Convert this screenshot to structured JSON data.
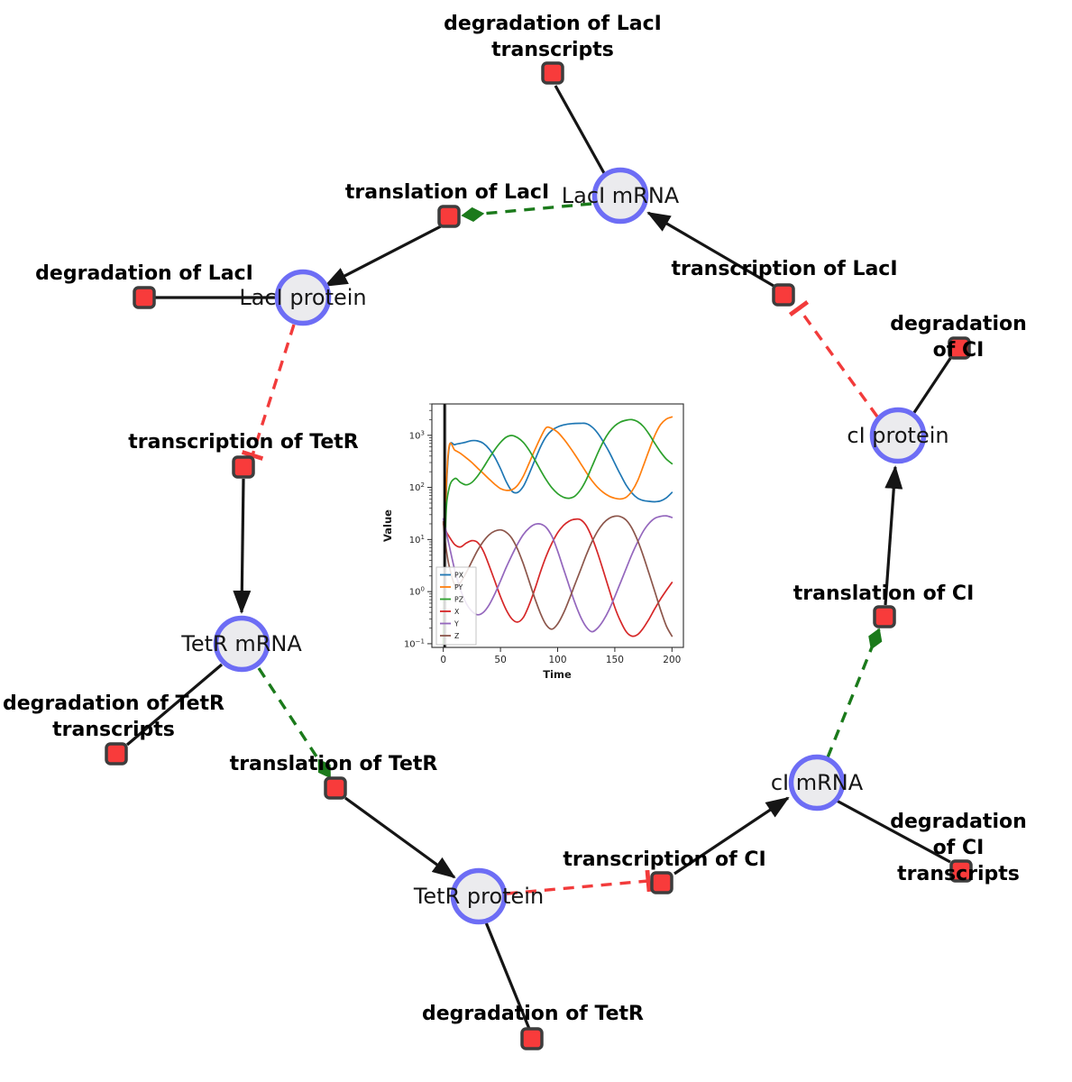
{
  "diagram": {
    "species_labels": {
      "lacI_mRNA": "LacI mRNA",
      "lacI_protein": "LacI protein",
      "tetR_mRNA": "TetR mRNA",
      "tetR_protein": "TetR protein",
      "cI_mRNA": "cI mRNA",
      "cI_protein": "cI protein"
    },
    "reaction_labels": {
      "deg_lacI_transcripts": "degradation of LacI\ntranscripts",
      "translation_lacI": "translation of LacI",
      "deg_lacI": "degradation of LacI",
      "transcription_lacI": "transcription of LacI",
      "deg_cI": "degradation of CI",
      "transcription_tetR": "transcription of TetR",
      "deg_tetR_transcripts": "degradation of TetR\ntranscripts",
      "translation_tetR": "translation of TetR",
      "deg_tetR": "degradation of TetR",
      "transcription_cI": "transcription of CI",
      "deg_cI_transcripts": "degradation of CI\ntranscripts",
      "translation_cI": "translation of CI"
    },
    "colors": {
      "species_fill": "#ebebee",
      "species_border": "#6d6df5",
      "reaction_fill": "#f83b3b",
      "reaction_border": "#3d3d3d",
      "activation": "#1b7a1b",
      "inhibition": "#f23b3b",
      "edge": "#151515"
    }
  },
  "chart_data": {
    "type": "line",
    "title": "",
    "xlabel": "Time",
    "ylabel": "Value",
    "x_ticks": [
      0,
      50,
      100,
      150,
      200
    ],
    "xlim": [
      -10,
      210
    ],
    "ylim": [
      0.085,
      4000
    ],
    "y_scale": "log",
    "y_decades": [
      3,
      2,
      1,
      0,
      -1
    ],
    "grid": false,
    "legend_position": "lower left",
    "legend": [
      "PX",
      "PY",
      "PZ",
      "X",
      "Y",
      "Z"
    ],
    "event_band_t": [
      0,
      4
    ],
    "event_line_t": 1.2,
    "t": [
      0,
      2,
      5,
      10,
      15,
      20,
      25,
      30,
      35,
      40,
      45,
      50,
      55,
      60,
      65,
      70,
      75,
      80,
      85,
      90,
      95,
      100,
      105,
      110,
      115,
      120,
      125,
      130,
      135,
      140,
      145,
      150,
      155,
      160,
      165,
      170,
      175,
      180,
      185,
      190,
      195,
      200
    ],
    "series": [
      {
        "name": "PX",
        "color": "#1f77b4",
        "values": [
          0.1,
          30,
          550,
          660,
          700,
          740,
          790,
          780,
          700,
          550,
          380,
          230,
          130,
          85,
          80,
          105,
          180,
          330,
          600,
          950,
          1250,
          1450,
          1580,
          1650,
          1690,
          1700,
          1680,
          1450,
          1100,
          750,
          480,
          290,
          175,
          110,
          78,
          62,
          56,
          54,
          53,
          55,
          63,
          80
        ]
      },
      {
        "name": "PY",
        "color": "#ff7f0e",
        "values": [
          0.1,
          40,
          600,
          520,
          450,
          370,
          300,
          235,
          185,
          145,
          115,
          95,
          88,
          90,
          110,
          165,
          290,
          520,
          900,
          1400,
          1350,
          1150,
          870,
          620,
          430,
          290,
          195,
          135,
          100,
          80,
          68,
          62,
          60,
          65,
          85,
          135,
          260,
          520,
          1000,
          1600,
          2050,
          2250
        ]
      },
      {
        "name": "PZ",
        "color": "#2ca02c",
        "values": [
          0.1,
          20,
          95,
          148,
          125,
          112,
          125,
          165,
          240,
          360,
          530,
          730,
          920,
          990,
          900,
          730,
          520,
          340,
          215,
          140,
          98,
          76,
          65,
          62,
          68,
          90,
          140,
          250,
          450,
          760,
          1150,
          1520,
          1800,
          1950,
          2000,
          1830,
          1480,
          1050,
          700,
          480,
          350,
          285
        ]
      },
      {
        "name": "X",
        "color": "#d62728",
        "values": [
          20,
          15,
          11.5,
          8,
          7.2,
          8.5,
          9.5,
          8.8,
          6,
          3.2,
          1.6,
          0.8,
          0.45,
          0.3,
          0.26,
          0.32,
          0.55,
          1.1,
          2.4,
          4.8,
          8.5,
          13.5,
          18.5,
          22.5,
          24.5,
          24,
          18.5,
          11,
          5.5,
          2.5,
          1.1,
          0.5,
          0.27,
          0.17,
          0.14,
          0.15,
          0.2,
          0.3,
          0.47,
          0.72,
          1.05,
          1.5
        ]
      },
      {
        "name": "Y",
        "color": "#9467bd",
        "values": [
          25,
          16,
          8,
          2.6,
          1.1,
          0.6,
          0.42,
          0.36,
          0.4,
          0.55,
          0.9,
          1.6,
          2.9,
          5,
          8.2,
          12.5,
          16.5,
          19.5,
          19.8,
          17,
          11.5,
          6,
          2.8,
          1.3,
          0.62,
          0.33,
          0.21,
          0.17,
          0.2,
          0.28,
          0.45,
          0.8,
          1.5,
          2.8,
          5.2,
          9,
          14.5,
          20.5,
          25.5,
          27.8,
          28.5,
          26.5
        ]
      },
      {
        "name": "Z",
        "color": "#8c564b",
        "values": [
          22,
          8,
          3.2,
          1.35,
          1.5,
          2.3,
          3.8,
          6.2,
          9.2,
          12.3,
          14.5,
          15.3,
          13.8,
          10.5,
          6.5,
          3.4,
          1.6,
          0.75,
          0.38,
          0.23,
          0.19,
          0.24,
          0.38,
          0.7,
          1.35,
          2.6,
          5,
          9,
          14.5,
          20.5,
          25.5,
          28,
          27.5,
          23.5,
          16.5,
          9.5,
          4.8,
          2.2,
          1,
          0.45,
          0.22,
          0.14
        ]
      }
    ]
  }
}
